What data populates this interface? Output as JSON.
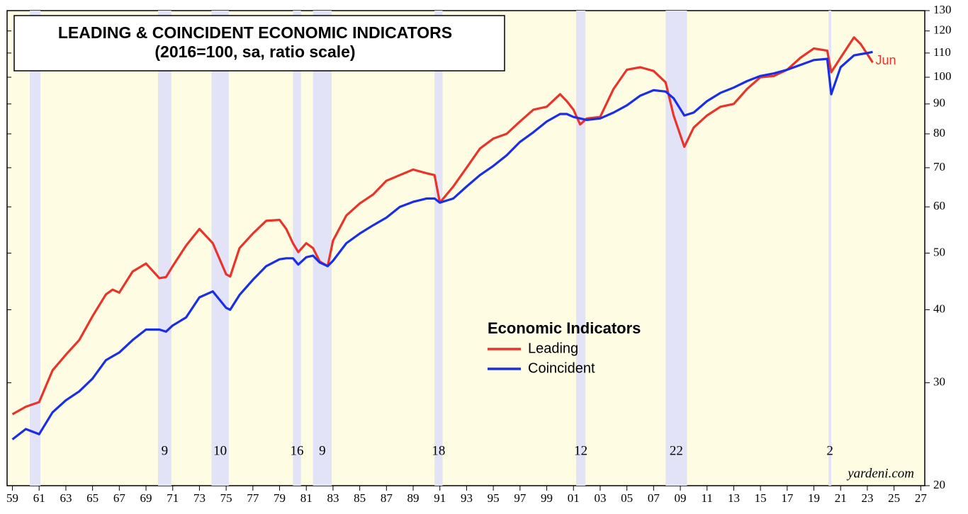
{
  "chart_data": {
    "type": "line",
    "title": "LEADING & COINCIDENT ECONOMIC INDICATORS",
    "subtitle": "(2016=100, sa, ratio scale)",
    "legend_title": "Economic Indicators",
    "source": "yardeni.com",
    "end_label": "Jun",
    "y_scale": "log",
    "y_axis_side": "right",
    "x": [
      1959,
      1960,
      1961,
      1962,
      1963,
      1964,
      1965,
      1966,
      1966.5,
      1967,
      1968,
      1969,
      1970,
      1970.5,
      1971,
      1972,
      1973,
      1974,
      1975,
      1975.3,
      1976,
      1977,
      1978,
      1979,
      1979.5,
      1980,
      1980.4,
      1981,
      1981.5,
      1982,
      1982.6,
      1983,
      1984,
      1985,
      1986,
      1987,
      1988,
      1989,
      1990,
      1990.6,
      1991,
      1992,
      1993,
      1994,
      1995,
      1996,
      1997,
      1998,
      1999,
      2000,
      2000.5,
      2001,
      2001.5,
      2002,
      2003,
      2004,
      2005,
      2006,
      2007,
      2007.9,
      2008.5,
      2009.3,
      2010,
      2011,
      2012,
      2013,
      2014,
      2015,
      2016,
      2017,
      2018,
      2019,
      2020,
      2020.3,
      2021,
      2022,
      2022.5,
      2023,
      2023.4
    ],
    "series": [
      {
        "name": "Leading",
        "color": "#e8342a",
        "values": [
          26.5,
          27.3,
          27.8,
          31.5,
          33.5,
          35.5,
          39,
          42.5,
          43.3,
          42.8,
          46.5,
          48,
          45.3,
          45.5,
          47.5,
          51.5,
          55,
          52,
          46,
          45.6,
          51,
          54,
          56.8,
          57,
          55,
          52,
          50.2,
          52,
          51,
          48.4,
          47.5,
          52.5,
          58,
          60.8,
          63,
          66.5,
          68,
          69.5,
          68.5,
          68,
          61,
          65,
          70,
          75.5,
          78.5,
          80,
          84,
          88,
          89,
          93.5,
          91,
          88,
          83,
          85,
          85.5,
          95.5,
          103,
          104,
          102.5,
          98,
          86,
          76,
          82,
          86,
          89,
          90,
          95.5,
          100,
          100.5,
          103,
          108,
          112,
          111,
          102,
          108,
          117,
          114,
          109.5,
          106
        ]
      },
      {
        "name": "Coincident",
        "color": "#1a2ee8",
        "values": [
          24,
          25,
          24.5,
          26.7,
          28,
          29,
          30.5,
          32.8,
          33.3,
          33.8,
          35.5,
          37,
          37,
          36.7,
          37.6,
          38.8,
          42,
          43,
          40.3,
          40,
          42.4,
          45,
          47.5,
          48.8,
          49,
          49,
          47.8,
          49.2,
          49.5,
          48.2,
          47.5,
          48.5,
          52,
          54,
          55.8,
          57.5,
          60,
          61.2,
          62,
          62,
          61,
          62,
          65,
          68,
          70.5,
          73.5,
          77.5,
          80.5,
          84,
          86.5,
          86.5,
          85.5,
          85,
          84.5,
          85,
          87,
          89.5,
          93,
          95,
          94.5,
          92,
          86,
          87,
          91,
          94,
          96,
          98.5,
          100.5,
          101.5,
          103,
          105,
          107,
          107.5,
          93.5,
          104,
          109,
          109.5,
          110,
          110.5
        ]
      }
    ],
    "recessions": [
      {
        "start": 1960.3,
        "end": 1961.1
      },
      {
        "start": 1969.9,
        "end": 1970.9,
        "label": 9
      },
      {
        "start": 1973.9,
        "end": 1975.2,
        "label": 10
      },
      {
        "start": 1980.0,
        "end": 1980.6,
        "label": 16
      },
      {
        "start": 1981.5,
        "end": 1982.9,
        "label": 9
      },
      {
        "start": 1990.6,
        "end": 1991.2,
        "label": 18
      },
      {
        "start": 2001.2,
        "end": 2001.9,
        "label": 12
      },
      {
        "start": 2007.9,
        "end": 2009.5,
        "label": 22
      },
      {
        "start": 2020.1,
        "end": 2020.3,
        "label": 2
      }
    ],
    "xlim": [
      1958.6,
      2027.3
    ],
    "ylim": [
      20,
      130
    ],
    "yticks": [
      20,
      30,
      40,
      50,
      60,
      70,
      80,
      90,
      100,
      110,
      120,
      130
    ],
    "xticks": [
      {
        "value": 1959,
        "label": "59"
      },
      {
        "value": 1961,
        "label": "61"
      },
      {
        "value": 1963,
        "label": "63"
      },
      {
        "value": 1965,
        "label": "65"
      },
      {
        "value": 1967,
        "label": "67"
      },
      {
        "value": 1969,
        "label": "69"
      },
      {
        "value": 1971,
        "label": "71"
      },
      {
        "value": 1973,
        "label": "73"
      },
      {
        "value": 1975,
        "label": "75"
      },
      {
        "value": 1977,
        "label": "77"
      },
      {
        "value": 1979,
        "label": "79"
      },
      {
        "value": 1981,
        "label": "81"
      },
      {
        "value": 1983,
        "label": "83"
      },
      {
        "value": 1985,
        "label": "85"
      },
      {
        "value": 1987,
        "label": "87"
      },
      {
        "value": 1989,
        "label": "89"
      },
      {
        "value": 1991,
        "label": "91"
      },
      {
        "value": 1993,
        "label": "93"
      },
      {
        "value": 1995,
        "label": "95"
      },
      {
        "value": 1997,
        "label": "97"
      },
      {
        "value": 1999,
        "label": "99"
      },
      {
        "value": 2001,
        "label": "01"
      },
      {
        "value": 2003,
        "label": "03"
      },
      {
        "value": 2005,
        "label": "05"
      },
      {
        "value": 2007,
        "label": "07"
      },
      {
        "value": 2009,
        "label": "09"
      },
      {
        "value": 2011,
        "label": "11"
      },
      {
        "value": 2013,
        "label": "13"
      },
      {
        "value": 2015,
        "label": "15"
      },
      {
        "value": 2017,
        "label": "17"
      },
      {
        "value": 2019,
        "label": "19"
      },
      {
        "value": 2021,
        "label": "21"
      },
      {
        "value": 2023,
        "label": "23"
      },
      {
        "value": 2025,
        "label": "25"
      },
      {
        "value": 2027,
        "label": "27"
      }
    ]
  }
}
